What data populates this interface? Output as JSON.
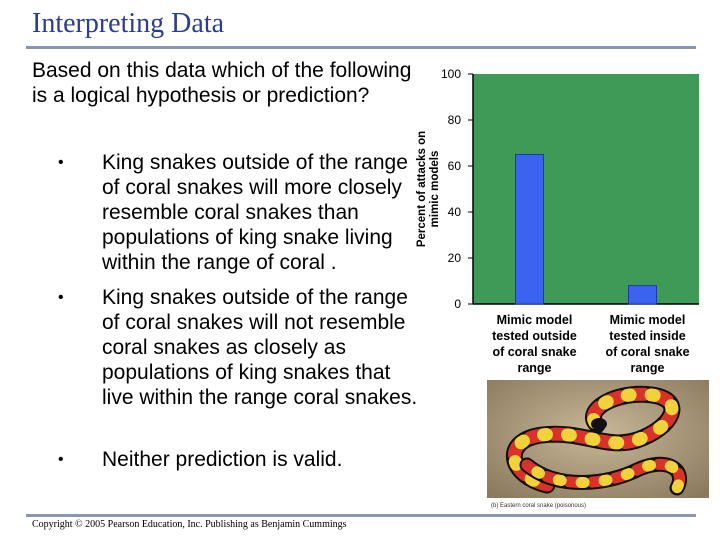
{
  "slide": {
    "title": "Interpreting Data",
    "question": "Based on this data which of the following is a logical hypothesis or prediction?",
    "bullets": [
      {
        "marker": "•",
        "text": "King snakes outside of the range of coral snakes will more closely resemble coral snakes than populations of king snake living within the range of coral ."
      },
      {
        "marker": "•",
        "text": "King snakes outside of the range of coral snakes will not resemble coral snakes as closely as populations of king snakes that live within the range coral snakes."
      },
      {
        "marker": "•",
        "text": "Neither prediction is valid."
      }
    ],
    "copyright": "Copyright © 2005 Pearson Education, Inc. Publishing as Benjamin Cummings",
    "photo_caption": "(b) Eastern coral snake (poisonous)"
  },
  "chart_data": {
    "type": "bar",
    "categories": [
      "Mimic model tested outside of coral snake range",
      "Mimic model tested inside of coral snake range"
    ],
    "category_lines": [
      [
        "Mimic model",
        "tested outside",
        "of coral snake",
        "range"
      ],
      [
        "Mimic model",
        "tested inside",
        "of coral snake",
        "range"
      ]
    ],
    "values": [
      65,
      8
    ],
    "ylabel_lines": [
      "Percent of attacks on",
      "mimic models"
    ],
    "ylim": [
      0,
      100
    ],
    "yticks": [
      0,
      20,
      40,
      60,
      80,
      100
    ],
    "grid": false,
    "plot_color": "#3e9b57",
    "bar_color": "#3a64f0"
  }
}
